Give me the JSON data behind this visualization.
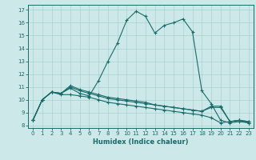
{
  "title": "",
  "xlabel": "Humidex (Indice chaleur)",
  "xlim": [
    -0.5,
    23.5
  ],
  "ylim": [
    7.8,
    17.4
  ],
  "yticks": [
    8,
    9,
    10,
    11,
    12,
    13,
    14,
    15,
    16,
    17
  ],
  "xticks": [
    0,
    1,
    2,
    3,
    4,
    5,
    6,
    7,
    8,
    9,
    10,
    11,
    12,
    13,
    14,
    15,
    16,
    17,
    18,
    19,
    20,
    21,
    22,
    23
  ],
  "background_color": "#cce8e8",
  "grid_color": "#aad0d0",
  "line_color": "#1a6b6b",
  "line_main": [
    8.4,
    10.0,
    10.6,
    10.5,
    10.9,
    10.5,
    10.3,
    11.5,
    13.0,
    14.4,
    16.2,
    16.9,
    16.5,
    15.2,
    15.8,
    16.0,
    16.3,
    15.3,
    10.7,
    9.7,
    8.4,
    8.2,
    8.3,
    8.2
  ],
  "line_flat1": [
    8.4,
    10.0,
    10.6,
    10.5,
    11.0,
    10.7,
    10.5,
    10.3,
    10.1,
    10.0,
    9.9,
    9.8,
    9.7,
    9.6,
    9.5,
    9.4,
    9.3,
    9.2,
    9.1,
    9.5,
    9.5,
    8.3,
    8.4,
    8.3
  ],
  "line_flat2": [
    8.4,
    10.0,
    10.6,
    10.5,
    11.1,
    10.8,
    10.6,
    10.4,
    10.2,
    10.1,
    10.0,
    9.9,
    9.8,
    9.6,
    9.5,
    9.4,
    9.3,
    9.2,
    9.1,
    9.4,
    9.4,
    8.3,
    8.4,
    8.3
  ],
  "line_flat3": [
    8.4,
    10.0,
    10.6,
    10.4,
    10.4,
    10.3,
    10.2,
    10.0,
    9.8,
    9.7,
    9.6,
    9.5,
    9.4,
    9.3,
    9.2,
    9.1,
    9.0,
    8.9,
    8.8,
    8.6,
    8.2,
    8.3,
    8.4,
    8.2
  ]
}
